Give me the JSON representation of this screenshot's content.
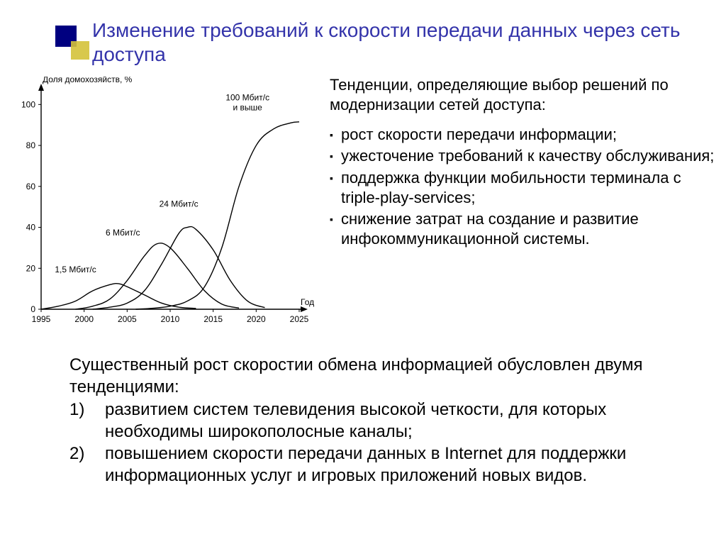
{
  "title": "Изменение требований к скорости передачи данных через сеть доступа",
  "right": {
    "intro": "Тенденции, определяющие выбор решений по модернизации сетей доступа:",
    "items": [
      "рост скорости передачи информации;",
      "ужесточение требований к качеству обслуживания;",
      "поддержка функции мобильности терминала с triple-play-services;",
      "снижение затрат на создание и развитие инфокоммуникационной системы."
    ]
  },
  "bottom": {
    "intro": "Существенный рост скоростии обмена информацией обусловлен двумя тенденциями:",
    "items": [
      {
        "num": "1)",
        "body": "развитием систем телевидения высокой четкости, для которых необходимы широкополосные каналы;"
      },
      {
        "num": "2)",
        "body": "повышением скорости передачи данных в Internet для поддержки информационных услуг и игровых приложений новых видов."
      }
    ]
  },
  "chart": {
    "type": "line",
    "stroke_color": "#000000",
    "background_color": "#ffffff",
    "line_width": 1.4,
    "ylabel": "Доля домохозяйств, %",
    "xlabel": "Год",
    "label_fontsize": 12,
    "tick_fontsize": 12,
    "xlim": [
      1995,
      2025
    ],
    "ylim": [
      0,
      106
    ],
    "xticks": [
      1995,
      2000,
      2005,
      2010,
      2015,
      2020,
      2025
    ],
    "yticks": [
      0,
      20,
      40,
      60,
      80,
      100
    ],
    "series": [
      {
        "label": "1,5 Мбит/с",
        "label_pos": {
          "x": 1999,
          "y": 16
        },
        "points": [
          [
            1995,
            0
          ],
          [
            1997,
            1.5
          ],
          [
            1999,
            4
          ],
          [
            2001,
            9
          ],
          [
            2003,
            12
          ],
          [
            2004,
            12.5
          ],
          [
            2005,
            11
          ],
          [
            2007,
            7
          ],
          [
            2009,
            3
          ],
          [
            2011,
            1
          ],
          [
            2013,
            0.4
          ]
        ]
      },
      {
        "label": "6 Мбит/с",
        "label_pos": {
          "x": 2004.5,
          "y": 34
        },
        "points": [
          [
            1999,
            0
          ],
          [
            2001,
            1.5
          ],
          [
            2003,
            5
          ],
          [
            2005,
            14
          ],
          [
            2007,
            26
          ],
          [
            2008.5,
            32
          ],
          [
            2010,
            30
          ],
          [
            2012,
            20
          ],
          [
            2014,
            9
          ],
          [
            2016,
            2.5
          ],
          [
            2018,
            0.6
          ]
        ]
      },
      {
        "label": "24 Мбит/с",
        "label_pos": {
          "x": 2011,
          "y": 48
        },
        "points": [
          [
            2001,
            0
          ],
          [
            2003,
            1
          ],
          [
            2005,
            3
          ],
          [
            2007,
            9
          ],
          [
            2009,
            22
          ],
          [
            2011,
            37
          ],
          [
            2012,
            40
          ],
          [
            2013,
            39
          ],
          [
            2015,
            29
          ],
          [
            2017,
            14
          ],
          [
            2019,
            4
          ],
          [
            2021,
            0.8
          ]
        ]
      },
      {
        "label": "100 Мбит/с\nи выше",
        "label_pos": {
          "x": 2019,
          "y": 100
        },
        "points": [
          [
            2006,
            0
          ],
          [
            2008,
            0.5
          ],
          [
            2010,
            1.5
          ],
          [
            2012,
            4
          ],
          [
            2014,
            11
          ],
          [
            2016,
            30
          ],
          [
            2018,
            60
          ],
          [
            2020,
            80
          ],
          [
            2022,
            88
          ],
          [
            2024,
            91
          ],
          [
            2025,
            91.5
          ]
        ]
      }
    ]
  }
}
